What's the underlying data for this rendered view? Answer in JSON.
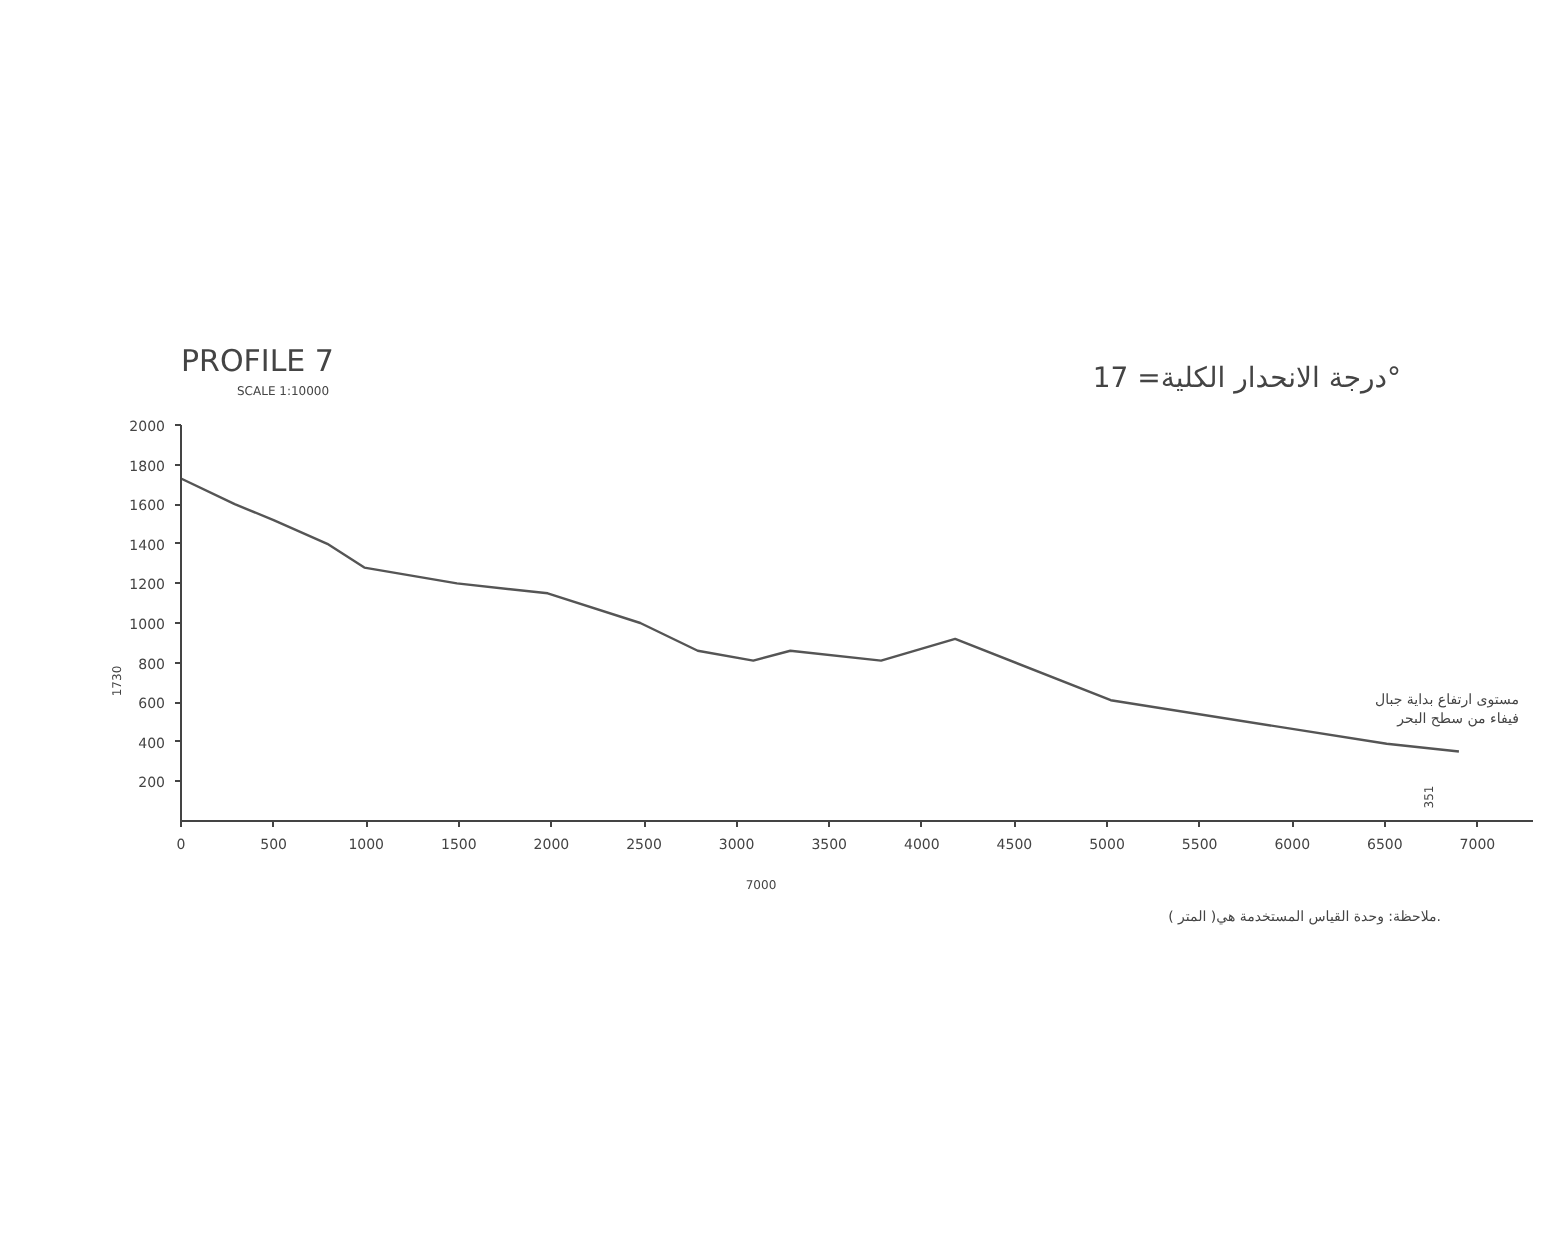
{
  "chart_data": {
    "type": "line",
    "title": "PROFILE  7",
    "subtitle": "SCALE 1:10000",
    "x": [
      0,
      290,
      500,
      790,
      990,
      1490,
      1980,
      2480,
      2790,
      3090,
      3290,
      3780,
      4180,
      5020,
      6510,
      6900
    ],
    "series": [
      {
        "color": "#555555",
        "values": [
          1730,
          1600,
          1520,
          1400,
          1280,
          1200,
          1150,
          1000,
          860,
          810,
          860,
          810,
          920,
          610,
          390,
          351
        ]
      }
    ],
    "xlim": [
      0,
      7300
    ],
    "ylim": [
      0,
      2000
    ],
    "xticks": [
      0,
      500,
      1000,
      1500,
      2000,
      2500,
      3000,
      3500,
      4000,
      4500,
      5000,
      5500,
      6000,
      6500,
      7000
    ],
    "yticks": [
      200,
      400,
      600,
      800,
      1000,
      1200,
      1400,
      1600,
      1800,
      2000
    ],
    "marker": "none",
    "line_style": "solid",
    "annotations": [
      "درجة الانحدار الكلية= 17°",
      "1730",
      "351",
      "7000",
      {
        "text": "مستوى ارتفاع بداية جبال\nفيفاء من سطح البحر",
        "x": 6900,
        "y": 351
      },
      "ملاحظة: وحدة القياس المستخدمة هي( المتر )."
    ]
  }
}
